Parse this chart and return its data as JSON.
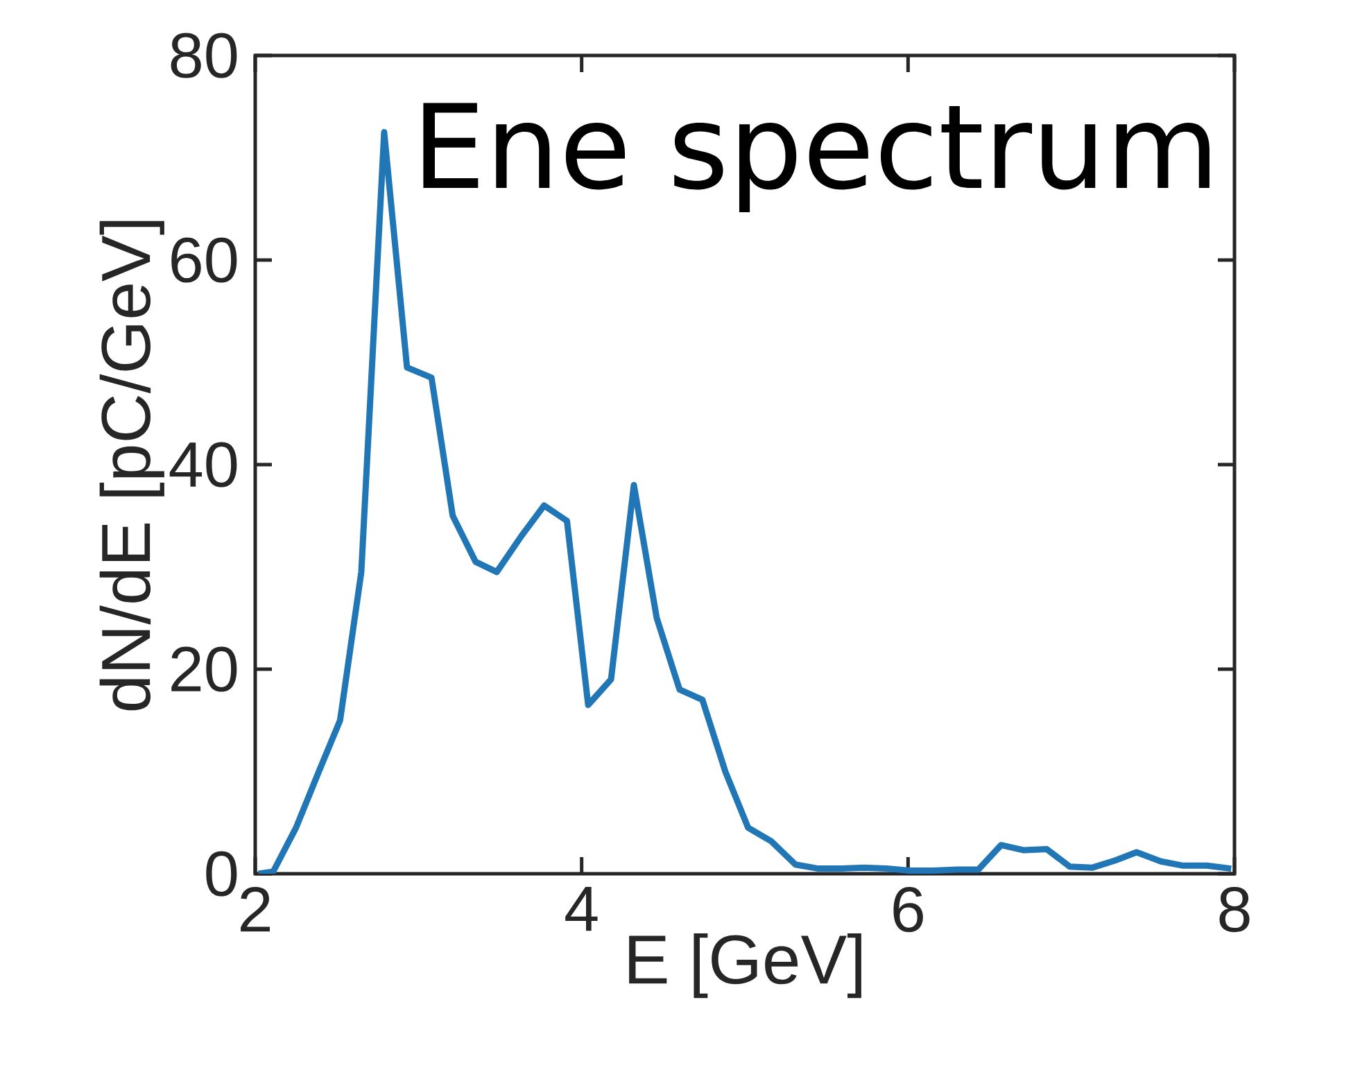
{
  "chart_data": {
    "type": "line",
    "title": "Ene spectrum",
    "xlabel": "E [GeV]",
    "ylabel": "dN/dE [pC/GeV]",
    "x": [
      2.02,
      2.11,
      2.25,
      2.39,
      2.52,
      2.65,
      2.79,
      2.93,
      3.08,
      3.21,
      3.35,
      3.48,
      3.63,
      3.77,
      3.91,
      4.04,
      4.18,
      4.32,
      4.46,
      4.6,
      4.74,
      4.88,
      5.02,
      5.16,
      5.31,
      5.45,
      5.59,
      5.73,
      5.87,
      6.01,
      6.15,
      6.3,
      6.43,
      6.57,
      6.71,
      6.85,
      6.99,
      7.13,
      7.27,
      7.4,
      7.55,
      7.68,
      7.83,
      7.98
    ],
    "series": [
      {
        "color": "#2176b5",
        "values": [
          0,
          0.2,
          4.5,
          10,
          15,
          29.5,
          72.5,
          49.5,
          48.5,
          35,
          30.5,
          29.5,
          33,
          36,
          34.5,
          16.5,
          19,
          38,
          25,
          18,
          17,
          10,
          4.5,
          3.2,
          0.9,
          0.5,
          0.5,
          0.6,
          0.5,
          0.3,
          0.3,
          0.4,
          0.4,
          2.8,
          2.3,
          2.4,
          0.7,
          0.6,
          1.3,
          2.1,
          1.2,
          0.8,
          0.8,
          0.5
        ]
      }
    ],
    "xlim": [
      2,
      8
    ],
    "ylim": [
      0,
      80
    ],
    "xticks": [
      2,
      4,
      6,
      8
    ],
    "yticks": [
      0,
      20,
      40,
      60,
      80
    ],
    "grid": false,
    "marker": "none",
    "line_style": "solid"
  }
}
